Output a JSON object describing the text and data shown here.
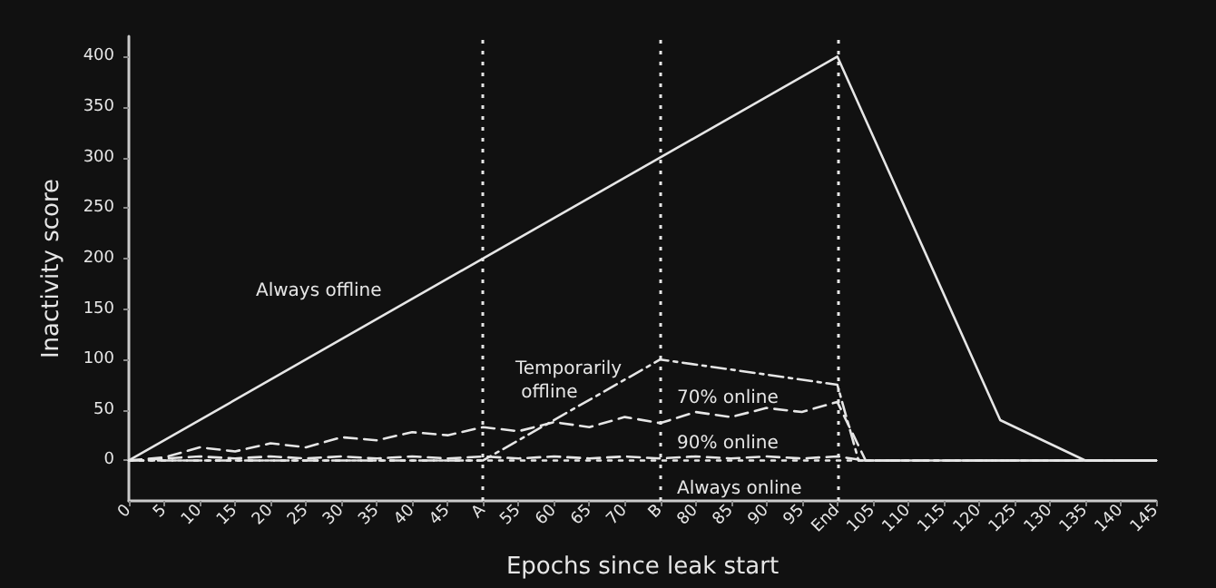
{
  "chart_data": {
    "type": "line",
    "xlabel": "Epochs since leak start",
    "ylabel": "Inactivity score",
    "xlim": [
      0,
      145
    ],
    "ylim": [
      -40,
      420
    ],
    "xticks": [
      0,
      5,
      10,
      15,
      20,
      25,
      30,
      35,
      40,
      45,
      {
        "value": 50,
        "label": "A"
      },
      55,
      60,
      65,
      70,
      {
        "value": 75,
        "label": "B"
      },
      80,
      85,
      90,
      95,
      {
        "value": 100,
        "label": "End"
      },
      105,
      110,
      115,
      120,
      125,
      130,
      135,
      140,
      145
    ],
    "yticks": [
      0,
      50,
      100,
      150,
      200,
      250,
      300,
      350,
      400
    ],
    "grid": false,
    "marker": "none",
    "series": [
      {
        "color": "#e6e6e6",
        "line_style": "solid",
        "x": [
          0,
          100,
          123,
          135,
          145
        ],
        "values": [
          0,
          400,
          40,
          0,
          0
        ]
      },
      {
        "color": "#e6e6e6",
        "line_style": "dashdot",
        "x": [
          0,
          50,
          75,
          100,
          103,
          145
        ],
        "values": [
          0,
          0,
          100,
          75,
          0,
          0
        ]
      },
      {
        "color": "#e6e6e6",
        "line_style": "dashed",
        "x": [
          0,
          5,
          10,
          15,
          20,
          25,
          30,
          35,
          40,
          45,
          50,
          55,
          60,
          65,
          70,
          75,
          80,
          85,
          90,
          95,
          100,
          104,
          145
        ],
        "values": [
          0,
          3,
          13,
          9,
          17,
          13,
          23,
          20,
          28,
          25,
          33,
          29,
          38,
          33,
          43,
          37,
          48,
          43,
          52,
          48,
          58,
          0,
          0
        ]
      },
      {
        "color": "#e6e6e6",
        "line_style": "dashed",
        "x": [
          0,
          5,
          10,
          15,
          20,
          25,
          30,
          35,
          40,
          45,
          50,
          55,
          60,
          65,
          70,
          75,
          80,
          85,
          90,
          95,
          100,
          104,
          145
        ],
        "values": [
          0,
          2,
          4,
          2,
          4,
          2,
          4,
          2,
          4,
          2,
          4,
          2,
          4,
          2,
          4,
          2,
          4,
          2,
          4,
          2,
          4,
          0,
          0
        ]
      },
      {
        "color": "#e6e6e6",
        "line_style": "dotted",
        "x": [
          0,
          145
        ],
        "values": [
          0,
          0
        ]
      }
    ],
    "ref_lines": [
      {
        "axis": "x",
        "value": 50,
        "line_style": "dotted",
        "color": "#e6e6e6"
      },
      {
        "axis": "x",
        "value": 75,
        "line_style": "dotted",
        "color": "#e6e6e6"
      },
      {
        "axis": "x",
        "value": 100,
        "line_style": "dotted",
        "color": "#e6e6e6"
      }
    ],
    "annotations": [
      "Always offline",
      "Temporarily offline",
      "70% online",
      "90% online",
      "Always online"
    ]
  }
}
